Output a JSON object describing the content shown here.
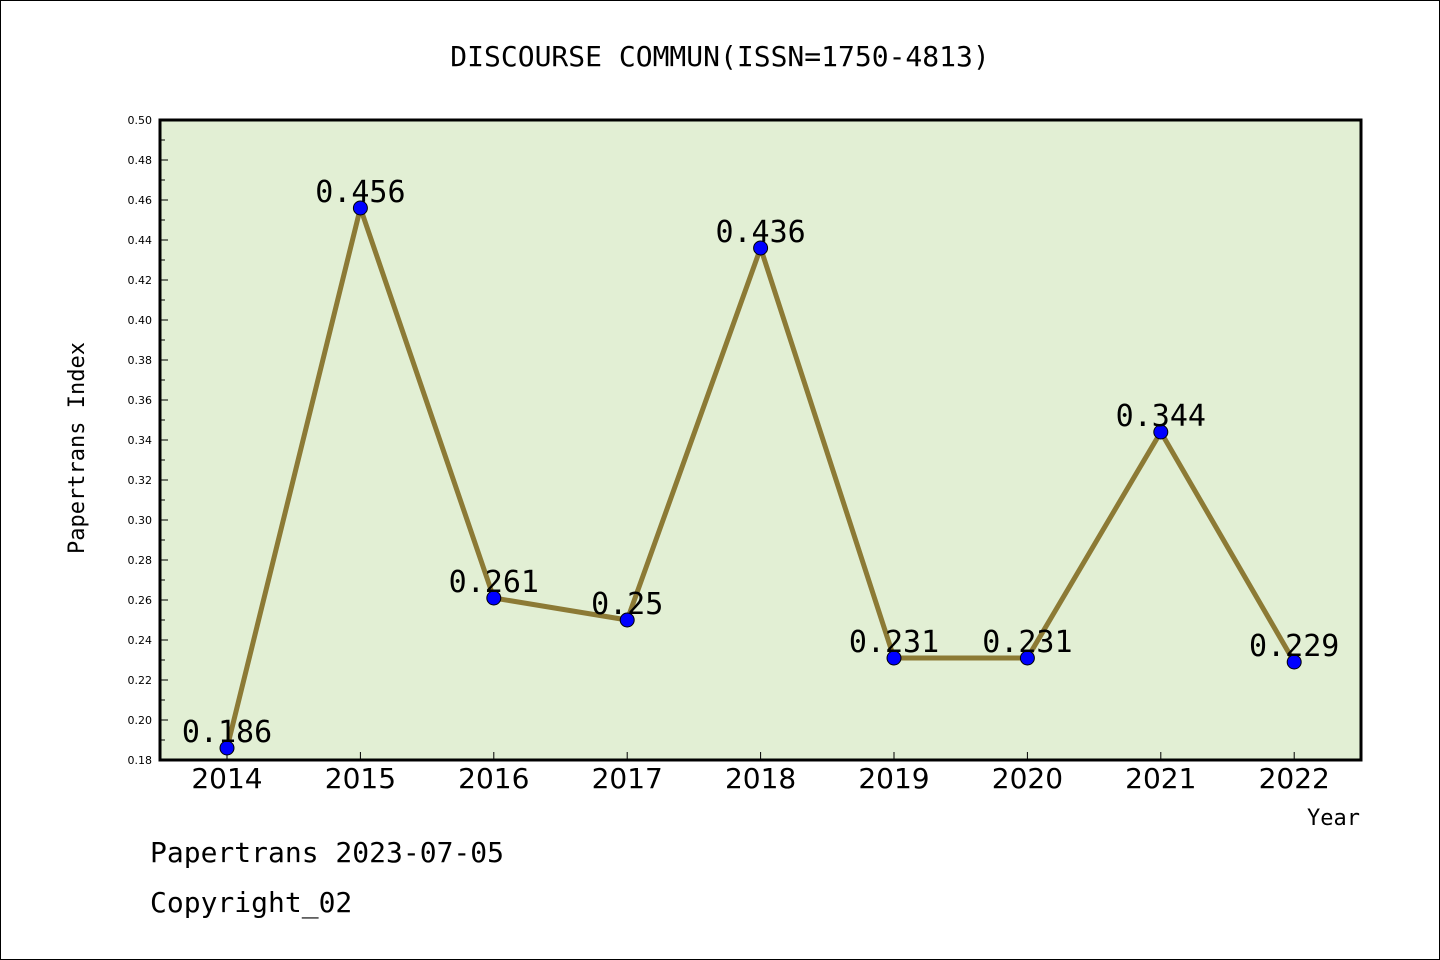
{
  "chart_data": {
    "type": "line",
    "title": "DISCOURSE COMMUN(ISSN=1750-4813)",
    "xlabel": "Year",
    "ylabel": "Papertrans Index",
    "categories": [
      "2014",
      "2015",
      "2016",
      "2017",
      "2018",
      "2019",
      "2020",
      "2021",
      "2022"
    ],
    "series": [
      {
        "values": [
          0.186,
          0.456,
          0.261,
          0.25,
          0.436,
          0.231,
          0.231,
          0.344,
          0.229
        ]
      }
    ],
    "data_labels": [
      "0.186",
      "0.456",
      "0.261",
      "0.25",
      "0.436",
      "0.231",
      "0.231",
      "0.344",
      "0.229"
    ],
    "ylim": [
      0.18,
      0.5
    ],
    "yticks": [
      "0.18",
      "0.20",
      "0.22",
      "0.24",
      "0.26",
      "0.28",
      "0.30",
      "0.32",
      "0.34",
      "0.36",
      "0.38",
      "0.40",
      "0.42",
      "0.44",
      "0.46",
      "0.48",
      "0.50"
    ],
    "grid": false,
    "colors": {
      "plot_bg": "#e2efd4",
      "line": "#8c7a35",
      "marker": "#0000ff"
    }
  },
  "footer": {
    "line1": "Papertrans 2023-07-05",
    "line2": "Copyright_02"
  }
}
